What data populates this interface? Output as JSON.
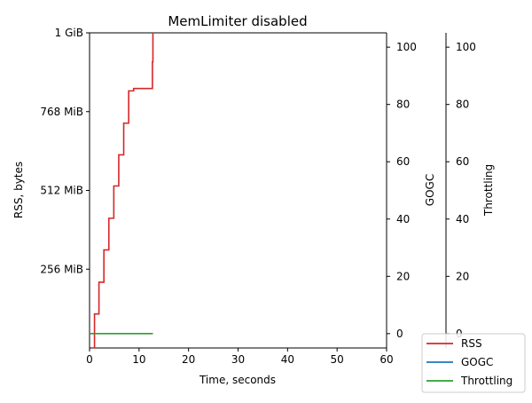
{
  "chart_data": {
    "type": "line",
    "title": "MemLimiter disabled",
    "xlabel": "Time, seconds",
    "ylabel": "RSS, bytes",
    "ylabel_right_1": "GOGC",
    "ylabel_right_2": "Throttling",
    "x_ticks": [
      "0",
      "10",
      "20",
      "30",
      "40",
      "50",
      "60"
    ],
    "xlim": [
      0,
      60
    ],
    "y_ticks": [
      {
        "value": 268435456,
        "label": "256 MiB"
      },
      {
        "value": 536870912,
        "label": "512 MiB"
      },
      {
        "value": 805306368,
        "label": "768 MiB"
      },
      {
        "value": 1073741824,
        "label": "1 GiB"
      }
    ],
    "ylim": [
      0,
      1073741824
    ],
    "y2_ticks": [
      "0",
      "20",
      "40",
      "60",
      "80",
      "100"
    ],
    "y2lim": [
      -5,
      105
    ],
    "y3_ticks": [
      "0",
      "20",
      "40",
      "60",
      "80",
      "100"
    ],
    "y3lim": [
      -5,
      105
    ],
    "grid": false,
    "legend_position": "bottom-right",
    "series": [
      {
        "name": "RSS",
        "axis": "left",
        "color": "#d62728",
        "step": true,
        "x": [
          0.7,
          1.0,
          1.9,
          2.9,
          3.9,
          4.9,
          5.9,
          6.9,
          7.9,
          8.9,
          12.1,
          12.7,
          12.8
        ],
        "y": [
          0,
          116000000,
          224000000,
          334000000,
          442000000,
          552000000,
          658000000,
          766000000,
          876000000,
          884000000,
          884000000,
          975000000,
          1073741824
        ]
      },
      {
        "name": "GOGC",
        "axis": "right",
        "color": "#1f77b4",
        "step": false,
        "x": [],
        "y": []
      },
      {
        "name": "Throttling",
        "axis": "right2",
        "color": "#2ca02c",
        "step": false,
        "x": [
          0,
          12.8
        ],
        "y": [
          0,
          0
        ]
      }
    ]
  }
}
